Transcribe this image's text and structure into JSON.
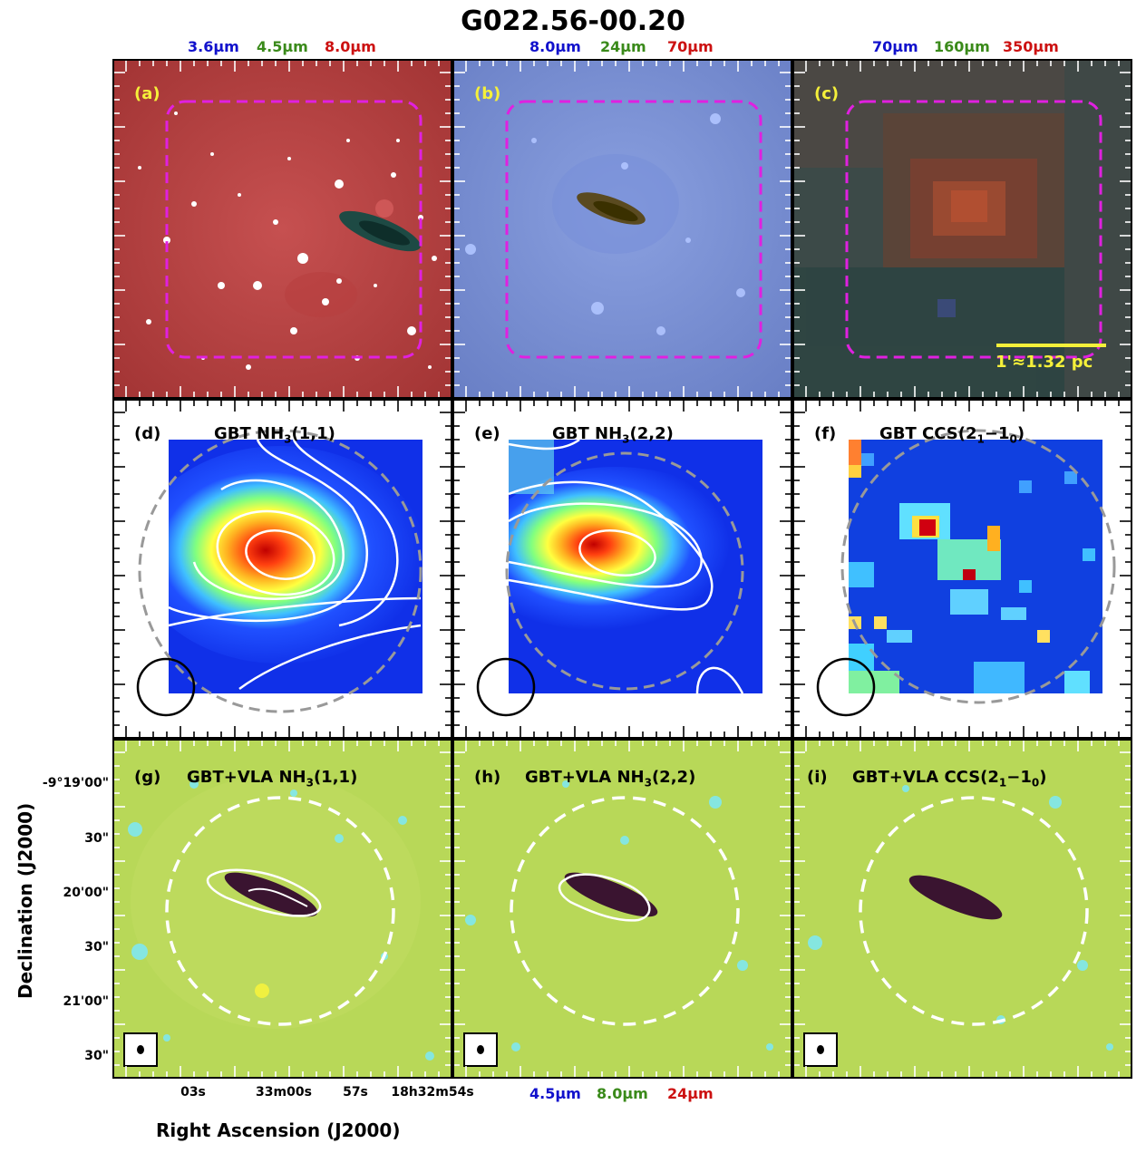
{
  "figure": {
    "title": "G022.56-00.20",
    "top_bands": [
      {
        "labels": [
          "3.6µm",
          "4.5µm",
          "8.0µm"
        ],
        "colors": [
          "#1111cc",
          "#3a8a1a",
          "#cc1111"
        ]
      },
      {
        "labels": [
          "8.0µm",
          "24µm",
          "70µm"
        ],
        "colors": [
          "#1111cc",
          "#3a8a1a",
          "#cc1111"
        ]
      },
      {
        "labels": [
          "70µm",
          "160µm",
          "350µm"
        ],
        "colors": [
          "#1111cc",
          "#3a8a1a",
          "#cc1111"
        ]
      }
    ],
    "bottom_bands": {
      "labels": [
        "4.5µm",
        "8.0µm",
        "24µm"
      ],
      "colors": [
        "#1111cc",
        "#3a8a1a",
        "#cc1111"
      ]
    },
    "panels": {
      "a": {
        "label": "(a)"
      },
      "b": {
        "label": "(b)"
      },
      "c": {
        "label": "(c)",
        "scalebar": "1'≈1.32 pc"
      },
      "d": {
        "label": "(d)",
        "title": "GBT NH",
        "sub": "3",
        "tail": "(1,1)"
      },
      "e": {
        "label": "(e)",
        "title": "GBT NH",
        "sub": "3",
        "tail": "(2,2)"
      },
      "f": {
        "label": "(f)",
        "title": "GBT CCS(2",
        "sub": "1",
        "mid": "−1",
        "sub2": "0",
        "tail": ")"
      },
      "g": {
        "label": "(g)",
        "title": "GBT+VLA NH",
        "sub": "3",
        "tail": "(1,1)"
      },
      "h": {
        "label": "(h)",
        "title": "GBT+VLA NH",
        "sub": "3",
        "tail": "(2,2)"
      },
      "i": {
        "label": "(i)",
        "title": "GBT+VLA CCS(2",
        "sub": "1",
        "mid": "−1",
        "sub2": "0",
        "tail": ")"
      }
    },
    "y_ticks": [
      "-9°19'00\"",
      "30\"",
      "20'00\"",
      "30\"",
      "21'00\"",
      "30\""
    ],
    "x_ticks": [
      "03s",
      "33m00s",
      "57s",
      "18h32m54s"
    ],
    "y_axis_label": "Declination (J2000)",
    "x_axis_label": "Right Ascension (J2000)",
    "label_colors": {
      "yellow": "#f5f03a",
      "black": "#000000",
      "magenta": "#e020e0"
    }
  }
}
